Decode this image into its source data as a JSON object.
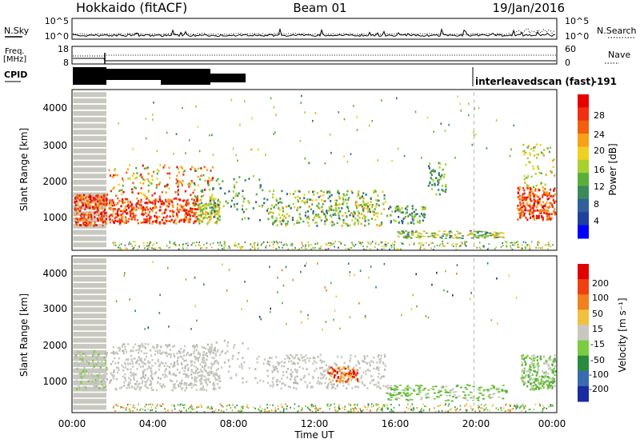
{
  "header": {
    "title": "Hokkaido (fitACF)",
    "beam": "Beam 01",
    "date": "19/Jan/2016"
  },
  "chart_data": [
    {
      "type": "line",
      "name_left": "N.Sky",
      "name_right": "N.Search",
      "yticks_left": [
        "10^5",
        "10^0"
      ],
      "yticks_right": [
        "10^5",
        "10^0"
      ]
    },
    {
      "type": "line",
      "name_left": "Freq. [MHz]",
      "name_right": "Nave",
      "yticks_left": [
        "18",
        "8"
      ],
      "yticks_right": [
        "60",
        "0"
      ]
    },
    {
      "type": "bar",
      "name_left": "CPID",
      "annotation": "interleavedscan (fast)",
      "cpid_value": "-191"
    },
    {
      "type": "heatmap",
      "ylabel": "Slant Range [km]",
      "yticks": [
        "4000",
        "3000",
        "2000",
        "1000"
      ],
      "ylim": [
        180,
        4500
      ],
      "colorbar": {
        "label": "Power [dB]",
        "ticks": [
          "28",
          "24",
          "20",
          "16",
          "12",
          "8",
          "4"
        ],
        "colors": [
          "#0000ff",
          "#2040a0",
          "#30609a",
          "#3a8a5a",
          "#58b038",
          "#a8d030",
          "#f0d020",
          "#f8a018",
          "#f06010",
          "#f03010",
          "#e80000"
        ]
      }
    },
    {
      "type": "heatmap",
      "ylabel": "Slant Range [km]",
      "yticks": [
        "4000",
        "3000",
        "2000",
        "1000"
      ],
      "ylim": [
        180,
        4500
      ],
      "colorbar": {
        "label": "Velocity [m s⁻¹]",
        "ticks": [
          "200",
          "100",
          "50",
          "15",
          "-15",
          "-50",
          "-100",
          "-200"
        ],
        "colors": [
          "#1a2aa0",
          "#3a6ab0",
          "#2a8a40",
          "#7acc40",
          "#c8c8c0",
          "#f0c040",
          "#f08020",
          "#f04010",
          "#e00000"
        ]
      }
    }
  ],
  "xaxis": {
    "label": "Time UT",
    "ticks": [
      "00:00",
      "04:00",
      "08:00",
      "12:00",
      "16:00",
      "20:00",
      "00:00"
    ],
    "range_hours": [
      0,
      24
    ]
  }
}
